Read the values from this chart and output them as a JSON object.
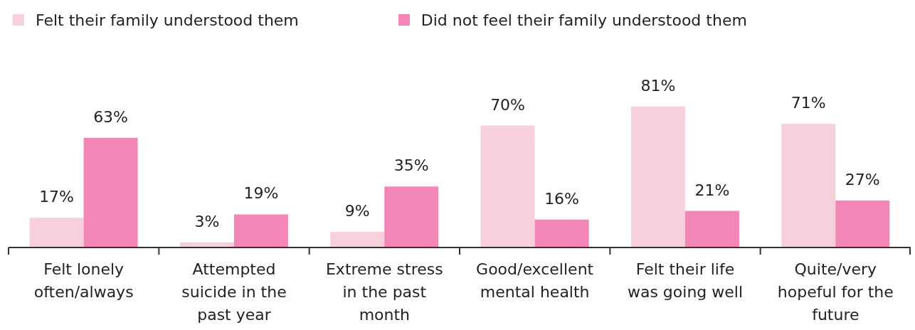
{
  "chart_data": {
    "type": "bar",
    "categories": [
      "Felt lonely often/always",
      "Attempted suicide in the past year",
      "Extreme stress in the past month",
      "Good/excellent mental health",
      "Felt their life was going well",
      "Quite/very hopeful for the future"
    ],
    "series": [
      {
        "name": "Felt their family understood them",
        "color": "#f7d0dc",
        "values": [
          17,
          3,
          9,
          70,
          81,
          71
        ],
        "value_labels": [
          "17%",
          "3%",
          "9%",
          "70%",
          "81%",
          "71%"
        ]
      },
      {
        "name": "Did not feel their family understood them",
        "color": "#f287b7",
        "values": [
          63,
          19,
          35,
          16,
          21,
          27
        ],
        "value_labels": [
          "63%",
          "19%",
          "35%",
          "16%",
          "21%",
          "27%"
        ]
      }
    ],
    "legend": "top left",
    "grid": false
  }
}
